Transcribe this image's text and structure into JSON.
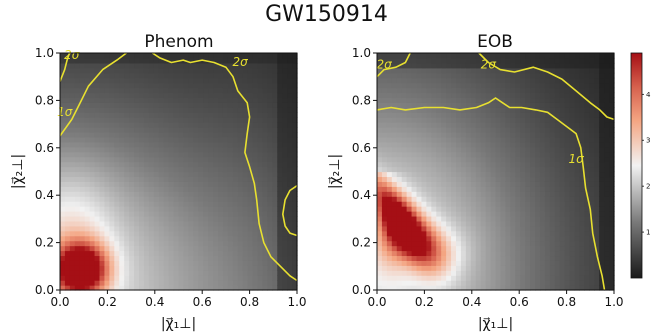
{
  "figure_title": "GW150914",
  "colors": {
    "contour": "#e8e030",
    "low": "#1a1a1a",
    "mid": "#f2f2f2",
    "high": "#a50f15"
  },
  "chart_data": [
    {
      "type": "heatmap",
      "title": "Phenom",
      "xlabel": "|χ⃗₁⊥|",
      "ylabel": "|χ⃗₂⊥|",
      "xlim": [
        0.0,
        1.0
      ],
      "ylim": [
        0.0,
        1.0
      ],
      "x_ticks": [
        "0.0",
        "0.2",
        "0.4",
        "0.6",
        "0.8",
        "1.0"
      ],
      "y_ticks": [
        "0.0",
        "0.2",
        "0.4",
        "0.6",
        "0.8",
        "1.0"
      ],
      "peak": {
        "x": 0.09,
        "y": 0.09,
        "density": 4.9
      },
      "contours": [
        {
          "label": "1σ",
          "path": [
            [
              0.0,
              0.65
            ],
            [
              0.05,
              0.72
            ],
            [
              0.08,
              0.78
            ],
            [
              0.12,
              0.86
            ],
            [
              0.18,
              0.93
            ],
            [
              0.24,
              0.97
            ],
            [
              0.28,
              1.0
            ]
          ]
        },
        {
          "label": "2σ",
          "path": [
            [
              0.0,
              0.88
            ],
            [
              0.02,
              0.93
            ],
            [
              0.03,
              0.97
            ],
            [
              0.04,
              1.0
            ]
          ]
        },
        {
          "label": "2σ",
          "path": [
            [
              0.39,
              1.0
            ],
            [
              0.42,
              0.98
            ],
            [
              0.47,
              0.96
            ],
            [
              0.52,
              0.97
            ],
            [
              0.55,
              0.96
            ],
            [
              0.6,
              0.97
            ],
            [
              0.65,
              0.96
            ],
            [
              0.7,
              0.94
            ],
            [
              0.73,
              0.9
            ],
            [
              0.75,
              0.84
            ],
            [
              0.79,
              0.79
            ],
            [
              0.8,
              0.73
            ],
            [
              0.79,
              0.66
            ],
            [
              0.78,
              0.58
            ],
            [
              0.8,
              0.52
            ],
            [
              0.82,
              0.45
            ],
            [
              0.83,
              0.38
            ],
            [
              0.84,
              0.28
            ],
            [
              0.86,
              0.2
            ],
            [
              0.89,
              0.14
            ],
            [
              0.93,
              0.1
            ],
            [
              0.97,
              0.06
            ],
            [
              1.0,
              0.04
            ]
          ]
        },
        {
          "label": "2σ",
          "path": [
            [
              1.0,
              0.23
            ],
            [
              0.97,
              0.24
            ],
            [
              0.95,
              0.27
            ],
            [
              0.94,
              0.32
            ],
            [
              0.95,
              0.38
            ],
            [
              0.97,
              0.42
            ],
            [
              1.0,
              0.44
            ]
          ]
        }
      ],
      "contour_labels": [
        {
          "text": "2σ",
          "x": 0.05,
          "y": 0.99
        },
        {
          "text": "2σ",
          "x": 0.76,
          "y": 0.96
        },
        {
          "text": "1σ",
          "x": 0.02,
          "y": 0.75
        }
      ]
    },
    {
      "type": "heatmap",
      "title": "EOB",
      "xlabel": "|χ⃗₁⊥|",
      "ylabel": "|χ⃗₂⊥|",
      "xlim": [
        0.0,
        1.0
      ],
      "ylim": [
        0.0,
        1.0
      ],
      "x_ticks": [
        "0.0",
        "0.2",
        "0.4",
        "0.6",
        "0.8",
        "1.0"
      ],
      "y_ticks": [
        "0.0",
        "0.2",
        "0.4",
        "0.6",
        "0.8",
        "1.0"
      ],
      "peak": {
        "x": 0.07,
        "y": 0.22,
        "density": 4.7
      },
      "contours": [
        {
          "label": "2σ",
          "path": [
            [
              0.0,
              0.9
            ],
            [
              0.03,
              0.93
            ],
            [
              0.08,
              0.94
            ],
            [
              0.12,
              0.96
            ],
            [
              0.14,
              1.0
            ]
          ]
        },
        {
          "label": "2σ",
          "path": [
            [
              0.43,
              1.0
            ],
            [
              0.47,
              0.96
            ],
            [
              0.52,
              0.93
            ],
            [
              0.58,
              0.92
            ],
            [
              0.66,
              0.94
            ],
            [
              0.72,
              0.92
            ],
            [
              0.78,
              0.89
            ],
            [
              0.84,
              0.84
            ],
            [
              0.9,
              0.79
            ],
            [
              0.94,
              0.76
            ],
            [
              0.97,
              0.73
            ],
            [
              1.0,
              0.72
            ]
          ]
        },
        {
          "label": "1σ",
          "path": [
            [
              0.0,
              0.76
            ],
            [
              0.06,
              0.77
            ],
            [
              0.12,
              0.76
            ],
            [
              0.2,
              0.77
            ],
            [
              0.28,
              0.77
            ],
            [
              0.35,
              0.76
            ],
            [
              0.42,
              0.77
            ],
            [
              0.47,
              0.79
            ],
            [
              0.5,
              0.81
            ],
            [
              0.53,
              0.79
            ],
            [
              0.56,
              0.77
            ],
            [
              0.61,
              0.77
            ],
            [
              0.67,
              0.76
            ],
            [
              0.72,
              0.75
            ],
            [
              0.76,
              0.72
            ],
            [
              0.8,
              0.69
            ],
            [
              0.84,
              0.66
            ],
            [
              0.86,
              0.6
            ],
            [
              0.87,
              0.52
            ],
            [
              0.88,
              0.43
            ],
            [
              0.9,
              0.34
            ],
            [
              0.91,
              0.24
            ],
            [
              0.93,
              0.14
            ],
            [
              0.95,
              0.06
            ],
            [
              0.96,
              0.0
            ]
          ]
        }
      ],
      "contour_labels": [
        {
          "text": "2σ",
          "x": 0.03,
          "y": 0.95
        },
        {
          "text": "2σ",
          "x": 0.47,
          "y": 0.95
        },
        {
          "text": "1σ",
          "x": 0.84,
          "y": 0.55
        }
      ]
    }
  ],
  "colorbar": {
    "min": 0,
    "max": 4.9,
    "ticks": [
      "1",
      "2",
      "3",
      "4"
    ]
  }
}
